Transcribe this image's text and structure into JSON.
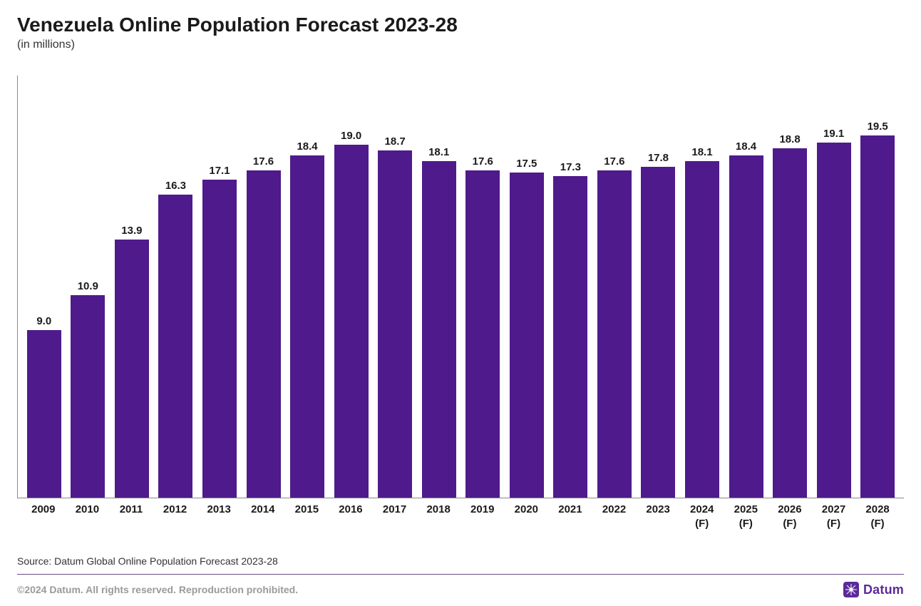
{
  "header": {
    "title": "Venezuela Online Population Forecast 2023-28",
    "subtitle": "(in millions)"
  },
  "chart": {
    "type": "bar",
    "bar_color": "#4f1a8c",
    "background_color": "#ffffff",
    "axis_color": "#888888",
    "ylim": [
      0,
      20
    ],
    "value_label_fontsize": 15,
    "value_label_fontweight": 600,
    "xaxis_label_fontsize": 15,
    "xaxis_label_fontweight": 600,
    "bar_width_ratio": 0.78,
    "data": [
      {
        "year": "2009",
        "suffix": "",
        "value": 9.0,
        "label": "9.0"
      },
      {
        "year": "2010",
        "suffix": "",
        "value": 10.9,
        "label": "10.9"
      },
      {
        "year": "2011",
        "suffix": "",
        "value": 13.9,
        "label": "13.9"
      },
      {
        "year": "2012",
        "suffix": "",
        "value": 16.3,
        "label": "16.3"
      },
      {
        "year": "2013",
        "suffix": "",
        "value": 17.1,
        "label": "17.1"
      },
      {
        "year": "2014",
        "suffix": "",
        "value": 17.6,
        "label": "17.6"
      },
      {
        "year": "2015",
        "suffix": "",
        "value": 18.4,
        "label": "18.4"
      },
      {
        "year": "2016",
        "suffix": "",
        "value": 19.0,
        "label": "19.0"
      },
      {
        "year": "2017",
        "suffix": "",
        "value": 18.7,
        "label": "18.7"
      },
      {
        "year": "2018",
        "suffix": "",
        "value": 18.1,
        "label": "18.1"
      },
      {
        "year": "2019",
        "suffix": "",
        "value": 17.6,
        "label": "17.6"
      },
      {
        "year": "2020",
        "suffix": "",
        "value": 17.5,
        "label": "17.5"
      },
      {
        "year": "2021",
        "suffix": "",
        "value": 17.3,
        "label": "17.3"
      },
      {
        "year": "2022",
        "suffix": "",
        "value": 17.6,
        "label": "17.6"
      },
      {
        "year": "2023",
        "suffix": "",
        "value": 17.8,
        "label": "17.8"
      },
      {
        "year": "2024",
        "suffix": "(F)",
        "value": 18.1,
        "label": "18.1"
      },
      {
        "year": "2025",
        "suffix": "(F)",
        "value": 18.4,
        "label": "18.4"
      },
      {
        "year": "2026",
        "suffix": "(F)",
        "value": 18.8,
        "label": "18.8"
      },
      {
        "year": "2027",
        "suffix": "(F)",
        "value": 19.1,
        "label": "19.1"
      },
      {
        "year": "2028",
        "suffix": "(F)",
        "value": 19.5,
        "label": "19.5"
      }
    ]
  },
  "source": "Source: Datum Global Online Population Forecast 2023-28",
  "footer": {
    "copyright": "©2024 Datum. All rights reserved. Reproduction prohibited.",
    "brand_name": "Datum",
    "brand_color": "#5b2a99",
    "brand_icon_bg": "#5b2a99",
    "brand_icon_fg": "#ffffff"
  }
}
